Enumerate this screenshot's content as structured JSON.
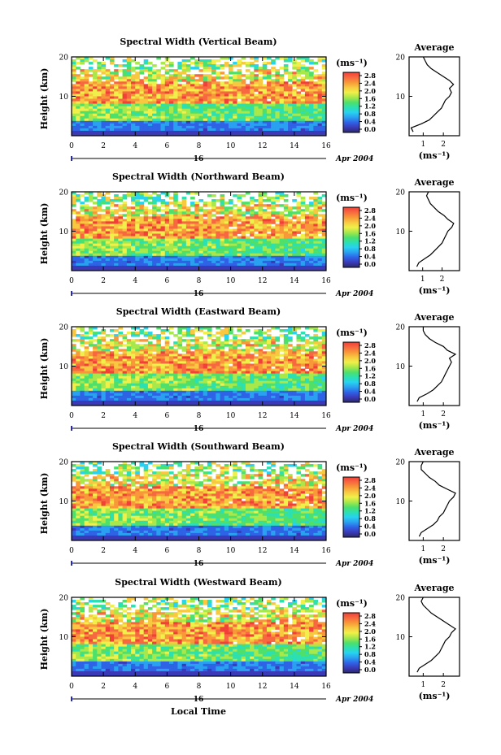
{
  "figure": {
    "xlabel": "Local Time",
    "ylabel": "Height (km)",
    "date_label": "16",
    "date_suffix": "Apr 2004",
    "unit_label": "(ms⁻¹)",
    "avg_title": "Average",
    "avg_xlabel": "(ms⁻¹)",
    "colors": {
      "scale": [
        "#2a2a6a",
        "#3a3ab8",
        "#2f63e6",
        "#2aa0f0",
        "#28d2f0",
        "#2ce0b0",
        "#4fe06a",
        "#a8e84a",
        "#f0f04a",
        "#f8c840",
        "#f89838",
        "#f86840",
        "#f04038"
      ],
      "line": "#000000",
      "background": "#ffffff"
    }
  },
  "chart_data": [
    {
      "type": "heatmap",
      "title": "Spectral Width (Vertical Beam)",
      "x_ticks": [
        0,
        2,
        4,
        6,
        8,
        10,
        12,
        14,
        16
      ],
      "xlim": [
        0,
        16
      ],
      "y_ticks": [
        10,
        20
      ],
      "ylim": [
        0,
        20
      ],
      "colorbar_ticks": [
        "2.8",
        "2.4",
        "2.0",
        "1.6",
        "1.2",
        "0.8",
        "0.4",
        "0.0"
      ],
      "colorbar_range": [
        0,
        2.8
      ],
      "average": {
        "x_ticks": [
          1,
          2
        ],
        "xlim": [
          0.3,
          2.8
        ],
        "y_ticks": [
          10,
          20
        ],
        "ylim": [
          0,
          20
        ],
        "height": [
          1,
          2,
          3,
          4,
          5,
          6,
          7,
          8,
          9,
          10,
          11,
          12,
          13,
          14,
          15,
          16,
          17,
          18,
          19,
          20
        ],
        "width": [
          0.5,
          0.4,
          0.9,
          1.3,
          1.5,
          1.7,
          1.9,
          2.0,
          2.1,
          2.3,
          2.4,
          2.3,
          2.5,
          2.3,
          2.0,
          1.7,
          1.4,
          1.2,
          1.1,
          1.0
        ]
      }
    },
    {
      "type": "heatmap",
      "title": "Spectral Width (Northward Beam)",
      "x_ticks": [
        0,
        2,
        4,
        6,
        8,
        10,
        12,
        14,
        16
      ],
      "xlim": [
        0,
        16
      ],
      "y_ticks": [
        10,
        20
      ],
      "ylim": [
        0,
        20
      ],
      "colorbar_ticks": [
        "2.8",
        "2.4",
        "2.0",
        "1.6",
        "1.2",
        "0.8",
        "0.4",
        "0.0"
      ],
      "colorbar_range": [
        0,
        2.8
      ],
      "average": {
        "x_ticks": [
          1,
          2
        ],
        "xlim": [
          0.3,
          2.9
        ],
        "y_ticks": [
          10,
          20
        ],
        "ylim": [
          0,
          20
        ],
        "height": [
          1,
          2,
          3,
          4,
          5,
          6,
          7,
          8,
          9,
          10,
          11,
          12,
          13,
          14,
          15,
          16,
          17,
          18,
          19,
          20
        ],
        "width": [
          0.7,
          0.8,
          1.1,
          1.4,
          1.6,
          1.8,
          2.0,
          2.1,
          2.2,
          2.3,
          2.5,
          2.6,
          2.3,
          2.1,
          1.8,
          1.6,
          1.4,
          1.3,
          1.2,
          1.3
        ]
      }
    },
    {
      "type": "heatmap",
      "title": "Spectral Width (Eastward Beam)",
      "x_ticks": [
        0,
        2,
        4,
        6,
        8,
        10,
        12,
        14,
        16
      ],
      "xlim": [
        0,
        16
      ],
      "y_ticks": [
        10,
        20
      ],
      "ylim": [
        0,
        20
      ],
      "colorbar_ticks": [
        "2.8",
        "2.4",
        "2.0",
        "1.6",
        "1.2",
        "0.8",
        "0.4",
        "0.0"
      ],
      "colorbar_range": [
        0,
        2.8
      ],
      "average": {
        "x_ticks": [
          1,
          2
        ],
        "xlim": [
          0.3,
          2.8
        ],
        "y_ticks": [
          10,
          20
        ],
        "ylim": [
          0,
          20
        ],
        "height": [
          1,
          2,
          3,
          4,
          5,
          6,
          7,
          8,
          9,
          10,
          11,
          12,
          13,
          14,
          15,
          16,
          17,
          18,
          19,
          20
        ],
        "width": [
          0.7,
          0.8,
          1.2,
          1.5,
          1.7,
          1.9,
          2.0,
          2.1,
          2.2,
          2.3,
          2.4,
          2.3,
          2.6,
          2.2,
          2.0,
          1.6,
          1.3,
          1.1,
          1.0,
          1.0
        ]
      }
    },
    {
      "type": "heatmap",
      "title": "Spectral Width (Southward Beam)",
      "x_ticks": [
        0,
        2,
        4,
        6,
        8,
        10,
        12,
        14,
        16
      ],
      "xlim": [
        0,
        16
      ],
      "y_ticks": [
        10,
        20
      ],
      "ylim": [
        0,
        20
      ],
      "colorbar_ticks": [
        "2.8",
        "2.4",
        "2.0",
        "1.6",
        "1.2",
        "0.8",
        "0.4",
        "0.0"
      ],
      "colorbar_range": [
        0,
        2.8
      ],
      "average": {
        "x_ticks": [
          1,
          2
        ],
        "xlim": [
          0.3,
          2.8
        ],
        "y_ticks": [
          10,
          20
        ],
        "ylim": [
          0,
          20
        ],
        "height": [
          1,
          2,
          3,
          4,
          5,
          6,
          7,
          8,
          9,
          10,
          11,
          12,
          13,
          14,
          15,
          16,
          17,
          18,
          19,
          20
        ],
        "width": [
          0.8,
          0.9,
          1.2,
          1.5,
          1.7,
          1.8,
          2.0,
          2.1,
          2.2,
          2.3,
          2.5,
          2.6,
          2.2,
          1.8,
          1.6,
          1.3,
          1.1,
          0.9,
          0.9,
          1.0
        ]
      }
    },
    {
      "type": "heatmap",
      "title": "Spectral Width (Westward Beam)",
      "x_ticks": [
        0,
        2,
        4,
        6,
        8,
        10,
        12,
        14,
        16
      ],
      "xlim": [
        0,
        16
      ],
      "y_ticks": [
        10,
        20
      ],
      "ylim": [
        0,
        20
      ],
      "colorbar_ticks": [
        "2.8",
        "2.4",
        "2.0",
        "1.6",
        "1.2",
        "0.8",
        "0.4",
        "0.0"
      ],
      "colorbar_range": [
        0,
        2.8
      ],
      "average": {
        "x_ticks": [
          1,
          2
        ],
        "xlim": [
          0.3,
          2.8
        ],
        "y_ticks": [
          10,
          20
        ],
        "ylim": [
          0,
          20
        ],
        "height": [
          1,
          2,
          3,
          4,
          5,
          6,
          7,
          8,
          9,
          10,
          11,
          12,
          13,
          14,
          15,
          16,
          17,
          18,
          19,
          20
        ],
        "width": [
          0.7,
          0.8,
          1.1,
          1.4,
          1.6,
          1.8,
          1.9,
          2.0,
          2.1,
          2.3,
          2.4,
          2.6,
          2.3,
          2.0,
          1.7,
          1.4,
          1.2,
          1.0,
          0.9,
          1.0
        ]
      }
    }
  ]
}
